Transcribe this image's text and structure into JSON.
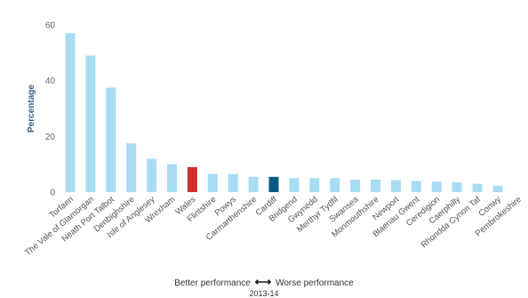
{
  "chart_data": {
    "type": "bar",
    "ylabel": "Percentage",
    "ylim": [
      0,
      60
    ],
    "yticks": [
      0,
      20,
      40,
      60
    ],
    "grid": false,
    "categories": [
      "Torfaen",
      "The Vale of Glamorgan",
      "Neath Port Talbot",
      "Denbighshire",
      "Isle of Anglesey",
      "Wrexham",
      "Wales",
      "Flintshire",
      "Powys",
      "Carmarthenshire",
      "Cardiff",
      "Bridgend",
      "Gwynedd",
      "Merthyr Tydfil",
      "Swansea",
      "Monmouthshire",
      "Newport",
      "Blaenau Gwent",
      "Ceredigion",
      "Caerphilly",
      "Rhondda Cynon Taf",
      "Conwy",
      "Pembrokeshire"
    ],
    "values": [
      57,
      49,
      37.5,
      17.5,
      12,
      10,
      9,
      6.5,
      6.5,
      5.5,
      5.5,
      5,
      5,
      5,
      4.5,
      4.5,
      4.3,
      4,
      3.8,
      3.5,
      3,
      2.3,
      0
    ],
    "colors": {
      "default": "#a8dcf2",
      "highlight_wales": "#d0302b",
      "highlight_cardiff": "#08597f"
    },
    "highlights": {
      "Wales": "highlight_wales",
      "Cardiff": "highlight_cardiff"
    }
  },
  "footer": {
    "better_label": "Better performance",
    "arrow_glyph": "⟷",
    "worse_label": "Worse performance",
    "period": "2013-14"
  }
}
